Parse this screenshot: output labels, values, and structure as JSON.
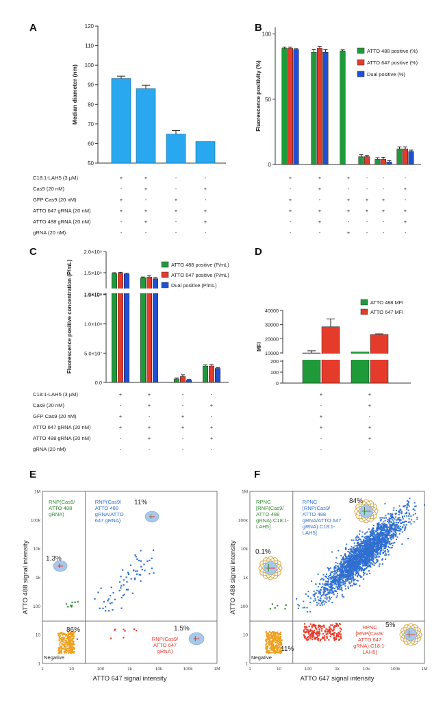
{
  "chart_data": [
    {
      "panel": "A",
      "type": "bar",
      "ylabel": "Median diameter (nm)",
      "ylim": [
        50,
        120
      ],
      "yticks": [
        50,
        60,
        70,
        80,
        90,
        100,
        110,
        120
      ],
      "bar_color": "#29a8f0",
      "values": [
        93.2,
        88.0,
        64.8,
        61.0
      ],
      "errors": [
        1.2,
        1.8,
        1.8,
        0
      ],
      "conditions": {
        "labels": [
          "C18:1-LAH5 (3 µM)",
          "Cas9 (20 nM)",
          "GFP Cas9 (20 nM)",
          "ATTO 647 gRNA (20 nM)",
          "ATTO 488 gRNA (20 nM)",
          "gRNA (20 nM)"
        ],
        "rows": [
          [
            "+",
            "+",
            "-",
            "-"
          ],
          [
            "-",
            "+",
            "-",
            "+"
          ],
          [
            "+",
            "-",
            "+",
            "-"
          ],
          [
            "+",
            "+",
            "+",
            "+"
          ],
          [
            "-",
            "+",
            "-",
            "+"
          ],
          [
            "-",
            "-",
            "-",
            "-"
          ]
        ]
      }
    },
    {
      "panel": "B",
      "type": "bar",
      "ylabel": "Fluorescence positivity (%)",
      "ylim": [
        0,
        105
      ],
      "yticks": [
        0,
        50,
        100
      ],
      "series": [
        {
          "name": "ATTO 488 positive (%)",
          "color": "#1f9a3a",
          "values": [
            89,
            86,
            87,
            6,
            4,
            12
          ],
          "errors": [
            0.8,
            2.0,
            0.8,
            1.5,
            1.2,
            1.5
          ]
        },
        {
          "name": "ATTO 647 positive (%)",
          "color": "#e53b2b",
          "values": [
            89,
            89,
            0,
            6,
            4,
            12
          ],
          "errors": [
            0.8,
            1.5,
            0,
            1.0,
            1.5,
            1.5
          ]
        },
        {
          "name": "Dual positive (%)",
          "color": "#1f4fd6",
          "values": [
            88,
            86,
            0,
            0,
            2,
            10
          ],
          "errors": [
            0.8,
            2.0,
            0,
            0,
            1.0,
            1.0
          ]
        }
      ],
      "conditions": {
        "rows": [
          [
            "+",
            "+",
            "+",
            "-",
            "-",
            "-"
          ],
          [
            "-",
            "+",
            "-",
            "-",
            "-",
            "+"
          ],
          [
            "+",
            "-",
            "+",
            "+",
            "+",
            "-"
          ],
          [
            "+",
            "+",
            "+",
            "+",
            "+",
            "+"
          ],
          [
            "-",
            "+",
            "-",
            "-",
            "-",
            "+"
          ],
          [
            "-",
            "-",
            "+",
            "-",
            "-",
            "-"
          ]
        ]
      }
    },
    {
      "panel": "C",
      "type": "bar",
      "ylabel": "Fluorescence positive concentration (P/mL)",
      "upper_ticks": [
        "1.0×10⁹",
        "1.5×10⁹",
        "2.0×10⁹"
      ],
      "lower_ticks": [
        "0.0",
        "5.0×10⁷",
        "1.0×10⁸",
        "1.5×10⁸"
      ],
      "series": [
        {
          "name": "ATTO 488 positive (P/mL)",
          "color": "#1f9a3a",
          "values": [
            1480000000.0,
            1380000000.0,
            6000000.0,
            28000000.0
          ],
          "errors": [
            20000000.0,
            20000000.0,
            1500000.0,
            2000000.0
          ]
        },
        {
          "name": "ATTO 647 positive (P/mL)",
          "color": "#e53b2b",
          "values": [
            1490000000.0,
            1400000000.0,
            10000000.0,
            28000000.0
          ],
          "errors": [
            20000000.0,
            30000000.0,
            3000000.0,
            2500000.0
          ]
        },
        {
          "name": "Dual positive (P/mL)",
          "color": "#1f4fd6",
          "values": [
            1470000000.0,
            1360000000.0,
            4000000.0,
            24000000.0
          ],
          "errors": [
            20000000.0,
            30000000.0,
            1000000.0,
            1500000.0
          ]
        }
      ],
      "conditions": {
        "labels": [
          "C18:1-LAH5 (3 µM)",
          "Cas9 (20 nM)",
          "GFP Cas9 (20 nM)",
          "ATTO 647 gRNA (20 nM)",
          "ATTO 488 gRNA (20 nM)",
          "gRNA (20 nM)"
        ],
        "rows": [
          [
            "+",
            "+",
            "-",
            "-"
          ],
          [
            "-",
            "+",
            "-",
            "+"
          ],
          [
            "+",
            "-",
            "+",
            "-"
          ],
          [
            "+",
            "+",
            "+",
            "+"
          ],
          [
            "-",
            "+",
            "-",
            "+"
          ],
          [
            "-",
            "-",
            "-",
            "-"
          ]
        ]
      }
    },
    {
      "panel": "D",
      "type": "bar",
      "ylabel": "MFI",
      "upper_ticks": [
        "10000",
        "20000",
        "30000",
        "40000"
      ],
      "lower_ticks": [
        "0",
        "100",
        "200"
      ],
      "series": [
        {
          "name": "ATTO 488 MFI",
          "color": "#1f9a3a",
          "values": [
            10000,
            4200
          ],
          "errors": [
            1500,
            0
          ]
        },
        {
          "name": "ATTO 647 MFI",
          "color": "#e53b2b",
          "values": [
            28500,
            23000
          ],
          "errors": [
            5500,
            500
          ]
        }
      ],
      "conditions": {
        "rows": [
          [
            "+",
            "+"
          ],
          [
            "-",
            "+"
          ],
          [
            "+",
            "-"
          ],
          [
            "+",
            "+"
          ],
          [
            "-",
            "+"
          ],
          [
            "-",
            "-"
          ]
        ]
      }
    },
    {
      "panel": "E",
      "type": "scatter",
      "xlabel": "ATTO 647 signal intensity",
      "ylabel": "ATTO 488 signal intensity",
      "xticks": [
        "1",
        "10",
        "100",
        "1k",
        "10k",
        "100k",
        "1M"
      ],
      "yticks": [
        "1",
        "10",
        "100",
        "1k",
        "10k",
        "100k",
        "1M"
      ],
      "gate": {
        "x": 30,
        "y": 30
      },
      "quadrants": {
        "top_left": {
          "label": "RNP(Cas9/\nATTO 488\ngRNA)",
          "percent": "1.3%",
          "color": "#2e8b2e"
        },
        "top_right": {
          "label": "RNP(Cas9/\nATTO 488\ngRNA/ATTO\n647 gRNA)",
          "percent": "11%",
          "color": "#2f6fd0"
        },
        "bottom_right": {
          "label": "RNP(Cas9/\nATTO 647\ngRNA)",
          "percent": "1.5%",
          "color": "#e53b2b"
        },
        "bottom_left": {
          "label": "Negative",
          "percent": "86%",
          "color": "#f0a020"
        }
      }
    },
    {
      "panel": "F",
      "type": "scatter",
      "xlabel": "ATTO 647 signal intensity",
      "ylabel": "ATTO 488 signal intensity",
      "xticks": [
        "1",
        "10",
        "100",
        "1k",
        "10k",
        "100k",
        "1M"
      ],
      "yticks": [
        "1",
        "10",
        "100",
        "1k",
        "10k",
        "100k",
        "1M"
      ],
      "gate": {
        "x": 30,
        "y": 30
      },
      "quadrants": {
        "top_left": {
          "label": "RPNC\n[RNP(Cas9/\nATTO 488\ngRNA):C18:1-\nLAH5]",
          "percent": "0.1%",
          "color": "#2e8b2e"
        },
        "top_right": {
          "label": "RPNC\n[RNP(Cas9/\nATTO 488\ngRNA/ATTO 647\ngRNA):C18:1-\nLAH5]",
          "percent": "84%",
          "color": "#2f6fd0"
        },
        "bottom_right": {
          "label": "RPNC\n[RNP(Cas9/\nATTO 647\ngRNA):C18:1-\nLAH5]",
          "percent": "5%",
          "color": "#e53b2b"
        },
        "bottom_left": {
          "label": "Negative",
          "percent": "11%",
          "color": "#f0a020"
        }
      }
    }
  ]
}
